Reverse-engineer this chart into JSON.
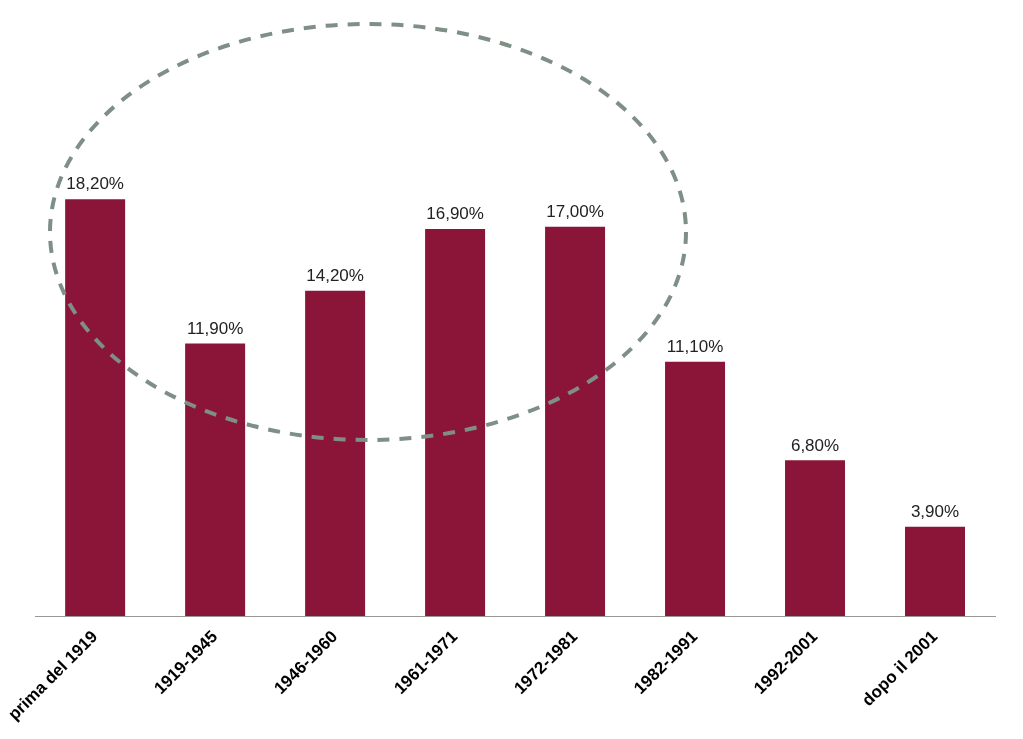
{
  "chart_data": {
    "type": "bar",
    "categories": [
      "prima del 1919",
      "1919-1945",
      "1946-1960",
      "1961-1971",
      "1972-1981",
      "1982-1991",
      "1992-2001",
      "dopo il 2001"
    ],
    "values": [
      18.2,
      11.9,
      14.2,
      16.9,
      17.0,
      11.1,
      6.8,
      3.9
    ],
    "value_labels": [
      "18,20%",
      "11,90%",
      "14,20%",
      "16,90%",
      "17,00%",
      "11,10%",
      "6,80%",
      "3,90%"
    ],
    "color": "#8b1538",
    "grid": false,
    "legend": false
  }
}
